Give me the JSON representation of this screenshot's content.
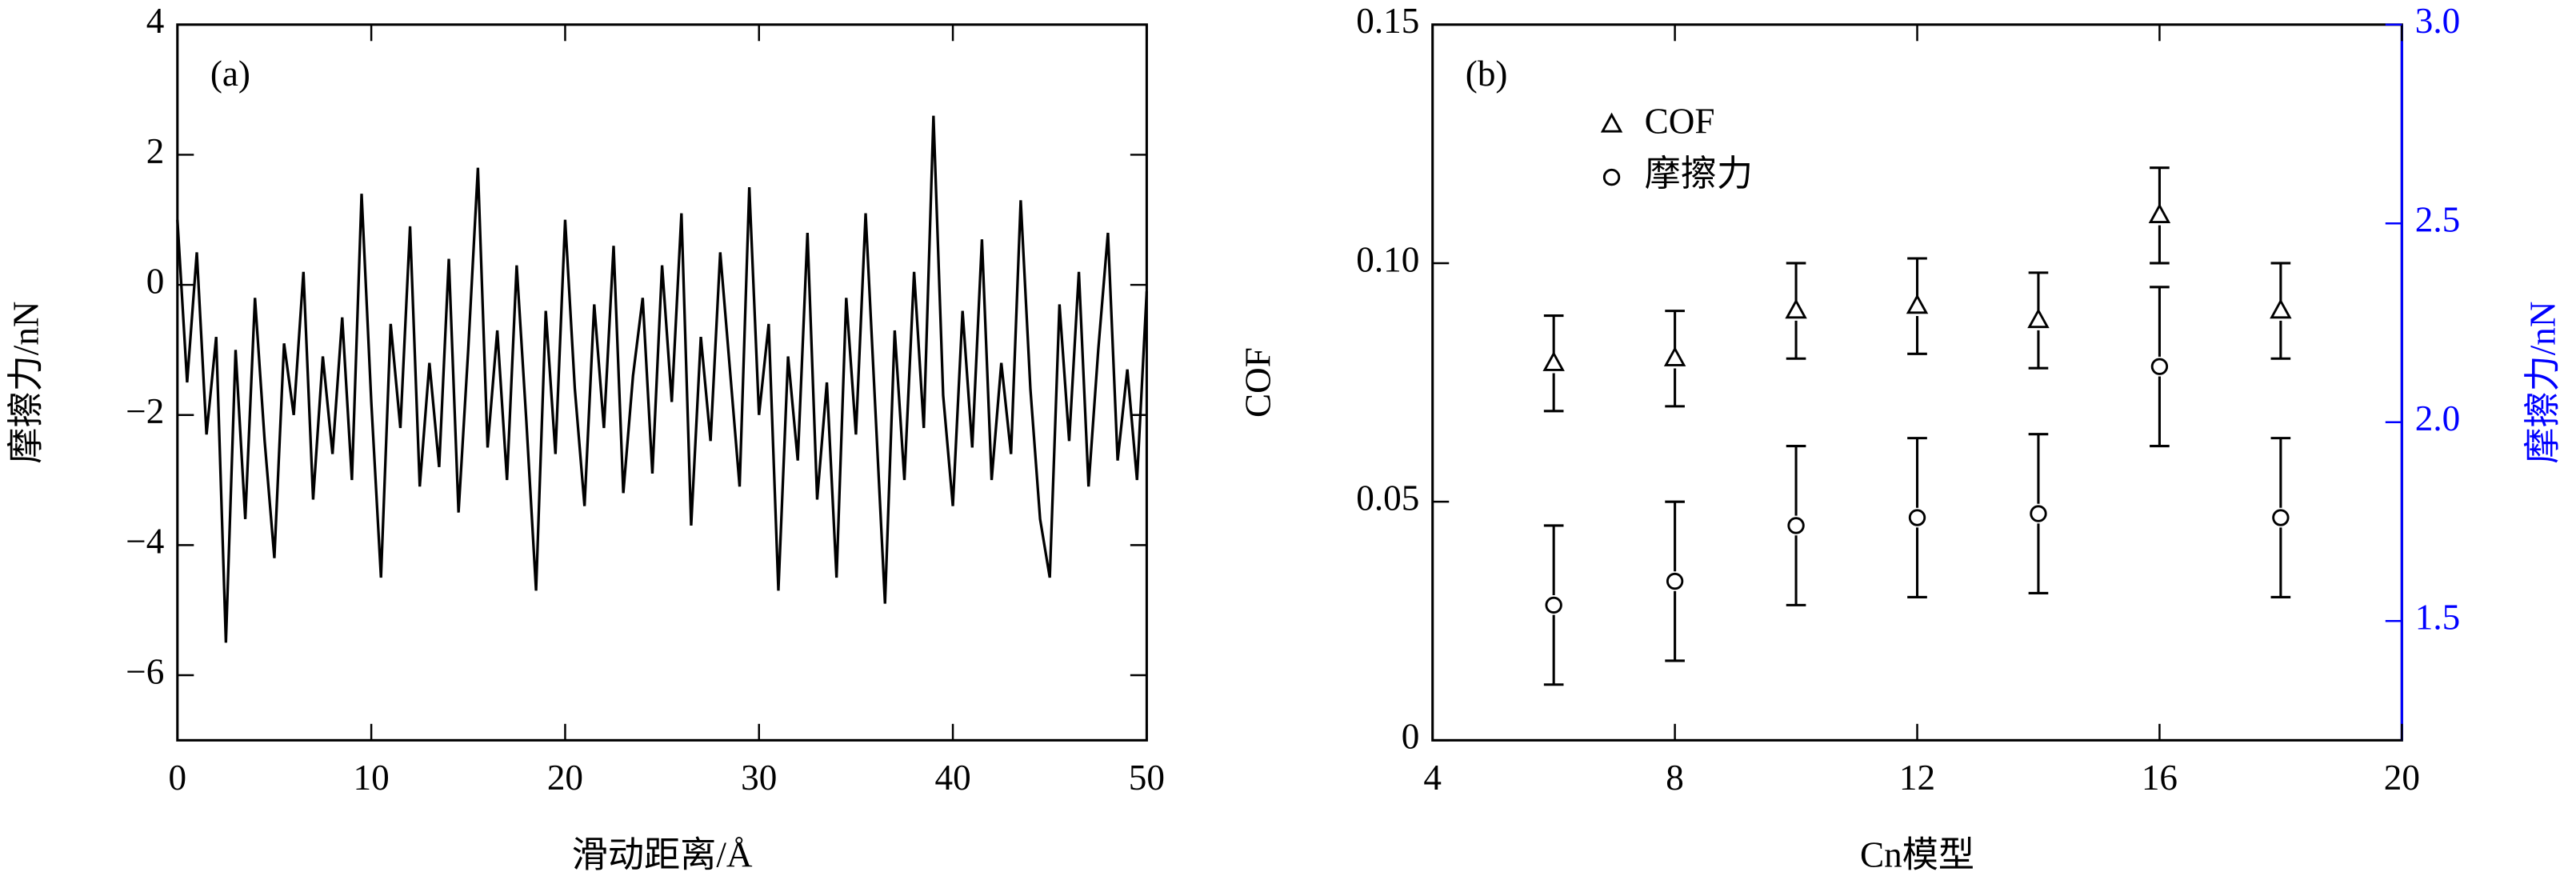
{
  "chart_data": [
    {
      "type": "line",
      "panel_label": "(a)",
      "x_label": "滑动距离/Å",
      "y_label": "摩擦力/nN",
      "xlim": [
        0,
        50
      ],
      "ylim": [
        -7,
        4
      ],
      "xticks": [
        0,
        10,
        20,
        30,
        40,
        50
      ],
      "yticks": [
        4,
        2,
        0,
        {
          "value": -2,
          "label": "−2"
        },
        {
          "value": -4,
          "label": "−4"
        },
        {
          "value": -6,
          "label": "−6"
        }
      ],
      "series": [
        {
          "color": "#000000",
          "x": [
            0,
            0.5,
            1,
            1.5,
            2,
            2.5,
            3,
            3.5,
            4,
            4.5,
            5,
            5.5,
            6,
            6.5,
            7,
            7.5,
            8,
            8.5,
            9,
            9.5,
            10,
            10.5,
            11,
            11.5,
            12,
            12.5,
            13,
            13.5,
            14,
            14.5,
            15,
            15.5,
            16,
            16.5,
            17,
            17.5,
            18,
            18.5,
            19,
            19.5,
            20,
            20.5,
            21,
            21.5,
            22,
            22.5,
            23,
            23.5,
            24,
            24.5,
            25,
            25.5,
            26,
            26.5,
            27,
            27.5,
            28,
            28.5,
            29,
            29.5,
            30,
            30.5,
            31,
            31.5,
            32,
            32.5,
            33,
            33.5,
            34,
            34.5,
            35,
            35.5,
            36,
            36.5,
            37,
            37.5,
            38,
            38.5,
            39,
            39.5,
            40,
            40.5,
            41,
            41.5,
            42,
            42.5,
            43,
            43.5,
            44,
            44.5,
            45,
            45.5,
            46,
            46.5,
            47,
            47.5,
            48,
            48.5,
            49,
            49.5,
            50
          ],
          "values": [
            1.0,
            -1.5,
            0.5,
            -2.3,
            -0.8,
            -5.5,
            -1.0,
            -3.6,
            -0.2,
            -2.4,
            -4.2,
            -0.9,
            -2.0,
            0.2,
            -3.3,
            -1.1,
            -2.6,
            -0.5,
            -3.0,
            1.4,
            -1.8,
            -4.5,
            -0.6,
            -2.2,
            0.9,
            -3.1,
            -1.2,
            -2.8,
            0.4,
            -3.5,
            -1.0,
            1.8,
            -2.5,
            -0.7,
            -3.0,
            0.3,
            -2.1,
            -4.7,
            -0.4,
            -2.6,
            1.0,
            -1.6,
            -3.4,
            -0.3,
            -2.2,
            0.6,
            -3.2,
            -1.4,
            -0.2,
            -2.9,
            0.3,
            -1.8,
            1.1,
            -3.7,
            -0.8,
            -2.4,
            0.5,
            -1.3,
            -3.1,
            1.5,
            -2.0,
            -0.6,
            -4.7,
            -1.1,
            -2.7,
            0.8,
            -3.3,
            -1.5,
            -4.5,
            -0.2,
            -2.3,
            1.1,
            -1.9,
            -4.9,
            -0.7,
            -3.0,
            0.2,
            -2.2,
            2.6,
            -1.7,
            -3.4,
            -0.4,
            -2.5,
            0.7,
            -3.0,
            -1.2,
            -2.6,
            1.3,
            -1.6,
            -3.6,
            -4.5,
            -0.3,
            -2.4,
            0.2,
            -3.1,
            -1.0,
            0.8,
            -2.7,
            -1.3,
            -3.0,
            -0.1
          ]
        }
      ]
    },
    {
      "type": "errorbar",
      "panel_label": "(b)",
      "x_label": "Cn模型",
      "y_label": "COF",
      "y2_label": "摩擦力/nN",
      "y2_color": "#0000ff",
      "xlim": [
        4,
        20
      ],
      "ylim": [
        0,
        0.15
      ],
      "y2lim": [
        1.2,
        3.0
      ],
      "xticks": [
        4,
        8,
        12,
        16,
        20
      ],
      "yticks": [
        0,
        0.05,
        {
          "value": 0.1,
          "label": "0.10"
        },
        0.15
      ],
      "y2ticks": [
        1.5,
        {
          "value": 2,
          "label": "2.0"
        },
        2.5,
        {
          "value": 3,
          "label": "3.0"
        }
      ],
      "x": [
        6,
        8,
        10,
        12,
        14,
        16,
        18
      ],
      "series": [
        {
          "name": "COF",
          "marker": "triangle",
          "color": "#000000",
          "values": [
            0.079,
            0.08,
            0.09,
            0.091,
            0.088,
            0.11,
            0.09
          ],
          "errors": [
            0.01,
            0.01,
            0.01,
            0.01,
            0.01,
            0.01,
            0.01
          ]
        },
        {
          "name": "摩擦力",
          "marker": "circle",
          "axis": "y2",
          "color": "#000000",
          "values": [
            1.54,
            1.6,
            1.74,
            1.76,
            1.77,
            2.14,
            1.76
          ],
          "errors": [
            0.2,
            0.2,
            0.2,
            0.2,
            0.2,
            0.2,
            0.2
          ]
        }
      ]
    }
  ]
}
